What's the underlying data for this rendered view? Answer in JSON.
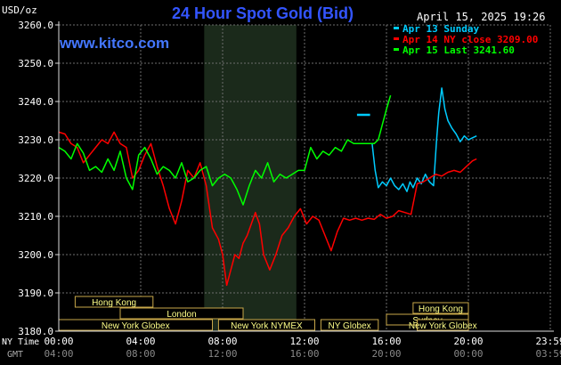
{
  "chart_data": {
    "type": "line",
    "title": "24 Hour Spot Gold (Bid)",
    "ylabel": "USD/oz",
    "timestamp": "April 15, 2025 19:26",
    "watermark": "www.kitco.com",
    "ylim": [
      3180,
      3260
    ],
    "yticks": [
      "3260.0",
      "3250.0",
      "3240.0",
      "3230.0",
      "3220.0",
      "3210.0",
      "3200.0",
      "3190.0",
      "3180.0"
    ],
    "xlim": [
      0,
      24
    ],
    "xticks": [
      "00:00",
      "04:00",
      "08:00",
      "12:00",
      "16:00",
      "20:00",
      "23:59"
    ],
    "gmt_ticks": [
      "04:00",
      "08:00",
      "12:00",
      "16:00",
      "20:00",
      "00:00",
      "03:59"
    ],
    "nytime_label": "NY Time",
    "gmt_label": "GMT",
    "shaded_range": [
      7.1,
      11.6
    ],
    "legend": [
      {
        "text": "Apr 13 Sunday",
        "color": "#00ccff"
      },
      {
        "text": "Apr 14 NY close 3209.00",
        "color": "#ff0000"
      },
      {
        "text": "Apr 15 Last 3241.60",
        "color": "#00ff00"
      }
    ],
    "sessions": [
      {
        "label": "Hong Kong",
        "start": 0.8,
        "end": 4.6,
        "row": 0
      },
      {
        "label": "Hong Kong",
        "start": 17.3,
        "end": 20.0,
        "row": 1
      },
      {
        "label": "London",
        "start": 3.0,
        "end": 9.0,
        "row": 2
      },
      {
        "label": "Sydney",
        "start": 16.0,
        "end": 20.0,
        "row": 3
      },
      {
        "label": "New York Globex",
        "start": 0.0,
        "end": 7.5,
        "row": 4
      },
      {
        "label": "New York NYMEX",
        "start": 7.8,
        "end": 12.5,
        "row": 5
      },
      {
        "label": "NY Globex",
        "start": 12.8,
        "end": 15.6,
        "row": 6
      },
      {
        "label": "New York Globex",
        "start": 17.5,
        "end": 20.0,
        "row": 7
      }
    ],
    "series": [
      {
        "name": "Apr 13 Sunday",
        "color": "#00ccff",
        "x": [
          14.56,
          15.2
        ],
        "y": [
          3236.5,
          3236.5
        ],
        "x2": [
          15.3,
          15.45,
          15.6,
          15.8,
          16.0,
          16.2,
          16.4,
          16.6,
          16.8,
          17.0,
          17.15,
          17.3,
          17.5,
          17.7,
          17.9,
          18.1,
          18.3,
          18.45,
          18.55,
          18.7,
          18.85,
          19.0,
          19.2,
          19.4,
          19.6,
          19.8,
          20.0,
          20.2,
          20.4
        ],
        "y2": [
          3229.0,
          3222.0,
          3217.5,
          3219.0,
          3218.0,
          3220.0,
          3218.0,
          3217.0,
          3218.5,
          3216.5,
          3219.0,
          3217.5,
          3220.0,
          3218.5,
          3221.0,
          3219.0,
          3218.0,
          3230.0,
          3237.0,
          3243.5,
          3238.0,
          3235.0,
          3233.0,
          3231.5,
          3229.5,
          3231.0,
          3230.0,
          3230.5,
          3231.0
        ]
      },
      {
        "name": "Apr 14 NY close 3209.00",
        "color": "#ff0000",
        "x": [
          0.0,
          0.3,
          0.6,
          0.9,
          1.2,
          1.5,
          1.8,
          2.1,
          2.4,
          2.7,
          3.0,
          3.3,
          3.6,
          3.9,
          4.2,
          4.5,
          4.8,
          5.1,
          5.4,
          5.7,
          6.0,
          6.3,
          6.6,
          6.9,
          7.2,
          7.5,
          7.8,
          8.0,
          8.2,
          8.4,
          8.6,
          8.8,
          9.0,
          9.2,
          9.4,
          9.6,
          9.8,
          10.0,
          10.3,
          10.6,
          10.9,
          11.2,
          11.5,
          11.8,
          12.1,
          12.4,
          12.7,
          13.0,
          13.3,
          13.6,
          13.9,
          14.2,
          14.5,
          14.8,
          15.1,
          15.4,
          15.7,
          16.0,
          16.3,
          16.6,
          16.9,
          17.2,
          17.5,
          17.8,
          18.1,
          18.4,
          18.7,
          19.0,
          19.3,
          19.6,
          19.9,
          20.2,
          20.4
        ],
        "y": [
          3232.0,
          3231.5,
          3229.0,
          3228.0,
          3224.0,
          3226.0,
          3228.0,
          3230.0,
          3229.0,
          3232.0,
          3229.0,
          3228.0,
          3220.0,
          3222.0,
          3226.0,
          3229.0,
          3223.0,
          3218.0,
          3212.0,
          3208.0,
          3214.0,
          3222.0,
          3220.0,
          3224.0,
          3218.0,
          3207.0,
          3204.0,
          3200.0,
          3192.0,
          3196.0,
          3200.0,
          3199.0,
          3203.0,
          3205.0,
          3208.0,
          3211.0,
          3208.0,
          3200.0,
          3196.0,
          3200.0,
          3205.0,
          3207.0,
          3210.0,
          3212.0,
          3208.0,
          3210.0,
          3209.0,
          3205.0,
          3201.0,
          3206.0,
          3209.5,
          3209.0,
          3209.5,
          3209.0,
          3209.5,
          3209.2,
          3210.5,
          3209.5,
          3210.0,
          3211.5,
          3211.0,
          3210.5,
          3218.5,
          3219.0,
          3220.0,
          3221.0,
          3220.5,
          3221.5,
          3222.0,
          3221.5,
          3223.0,
          3224.5,
          3225.0
        ]
      },
      {
        "name": "Apr 15 Last 3241.60",
        "color": "#00ff00",
        "x": [
          0.0,
          0.3,
          0.6,
          0.9,
          1.2,
          1.5,
          1.8,
          2.1,
          2.4,
          2.7,
          3.0,
          3.3,
          3.6,
          3.9,
          4.2,
          4.5,
          4.8,
          5.1,
          5.4,
          5.7,
          6.0,
          6.3,
          6.6,
          6.9,
          7.2,
          7.5,
          7.8,
          8.1,
          8.4,
          8.7,
          9.0,
          9.3,
          9.6,
          9.9,
          10.2,
          10.5,
          10.8,
          11.1,
          11.4,
          11.7,
          12.0,
          12.3,
          12.6,
          12.9,
          13.2,
          13.5,
          13.8,
          14.1,
          14.4,
          14.7,
          15.0,
          15.2,
          15.4,
          15.6,
          15.8,
          16.0,
          16.2
        ],
        "y": [
          3228.0,
          3227.0,
          3225.0,
          3229.0,
          3226.5,
          3222.0,
          3223.0,
          3221.5,
          3225.0,
          3222.0,
          3227.0,
          3220.0,
          3217.0,
          3226.0,
          3228.0,
          3225.0,
          3221.0,
          3223.0,
          3222.0,
          3220.0,
          3224.0,
          3219.0,
          3220.0,
          3222.0,
          3223.0,
          3218.0,
          3220.0,
          3221.0,
          3220.0,
          3217.0,
          3213.0,
          3218.0,
          3222.0,
          3220.0,
          3224.0,
          3219.0,
          3221.0,
          3220.0,
          3221.0,
          3222.0,
          3222.0,
          3228.0,
          3225.0,
          3227.0,
          3226.0,
          3228.0,
          3227.0,
          3230.0,
          3229.0,
          3229.0,
          3229.0,
          3229.0,
          3229.0,
          3230.0,
          3234.0,
          3238.0,
          3241.6
        ]
      }
    ]
  }
}
